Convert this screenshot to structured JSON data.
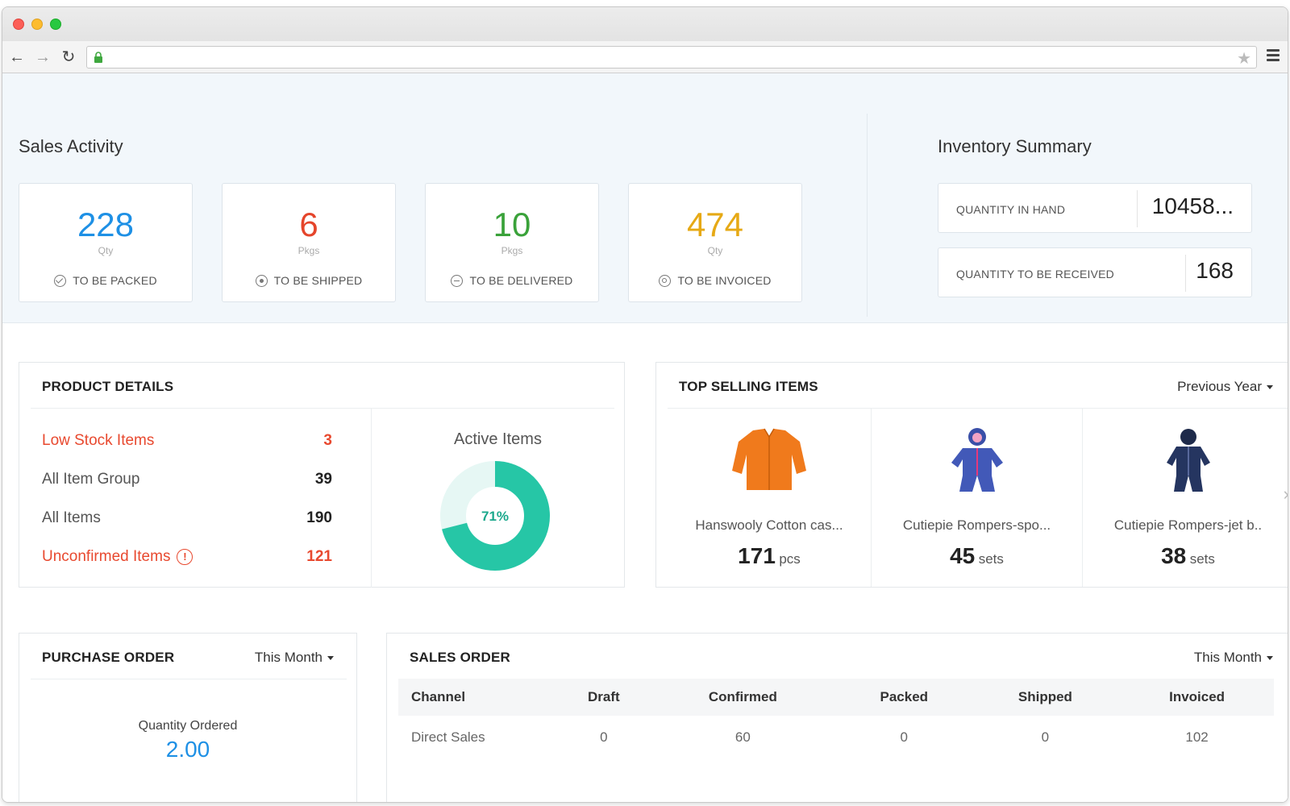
{
  "sales_activity": {
    "title": "Sales Activity",
    "cards": [
      {
        "value": "228",
        "unit": "Qty",
        "label": "TO BE PACKED",
        "color": "#1e90e5",
        "icon": "check-circle-icon"
      },
      {
        "value": "6",
        "unit": "Pkgs",
        "label": "TO BE SHIPPED",
        "color": "#e5452b",
        "icon": "ship-circle-icon"
      },
      {
        "value": "10",
        "unit": "Pkgs",
        "label": "TO BE DELIVERED",
        "color": "#3aa23a",
        "icon": "deliver-circle-icon"
      },
      {
        "value": "474",
        "unit": "Qty",
        "label": "TO BE INVOICED",
        "color": "#e6a915",
        "icon": "invoice-circle-icon"
      }
    ]
  },
  "inventory_summary": {
    "title": "Inventory Summary",
    "rows": [
      {
        "label": "QUANTITY IN HAND",
        "value": "10458..."
      },
      {
        "label": "QUANTITY TO BE RECEIVED",
        "value": "168"
      }
    ]
  },
  "product_details": {
    "title": "PRODUCT DETAILS",
    "rows": [
      {
        "label": "Low Stock Items",
        "value": "3",
        "alert": true
      },
      {
        "label": "All Item Group",
        "value": "39",
        "alert": false
      },
      {
        "label": "All Items",
        "value": "190",
        "alert": false
      },
      {
        "label": "Unconfirmed Items",
        "value": "121",
        "alert": true,
        "icon": "warning-icon"
      }
    ],
    "active_items": {
      "title": "Active Items",
      "percent_label": "71%",
      "percent": 71,
      "color": "#26c6a6",
      "track_color": "#e6f7f4"
    }
  },
  "top_selling": {
    "title": "TOP SELLING ITEMS",
    "period": "Previous Year",
    "items": [
      {
        "name": "Hanswooly Cotton cas...",
        "qty": "171",
        "unit": "pcs",
        "image": "orange-cardigan"
      },
      {
        "name": "Cutiepie Rompers-spo...",
        "qty": "45",
        "unit": "sets",
        "image": "blue-romper-pink"
      },
      {
        "name": "Cutiepie Rompers-jet b..",
        "qty": "38",
        "unit": "sets",
        "image": "navy-romper"
      }
    ]
  },
  "purchase_order": {
    "title": "PURCHASE ORDER",
    "period": "This Month",
    "metric_label": "Quantity Ordered",
    "metric_value": "2.00"
  },
  "sales_order": {
    "title": "SALES ORDER",
    "period": "This Month",
    "columns": [
      "Channel",
      "Draft",
      "Confirmed",
      "Packed",
      "Shipped",
      "Invoiced"
    ],
    "rows": [
      [
        "Direct Sales",
        "0",
        "60",
        "0",
        "0",
        "102"
      ]
    ]
  }
}
